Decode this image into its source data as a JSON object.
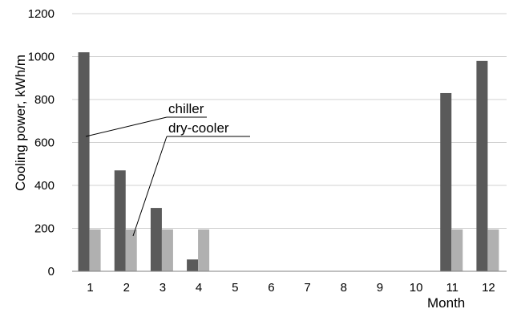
{
  "chart_data": {
    "type": "bar",
    "categories": [
      "1",
      "2",
      "3",
      "4",
      "5",
      "6",
      "7",
      "8",
      "9",
      "10",
      "11",
      "12"
    ],
    "series": [
      {
        "name": "chiller",
        "values": [
          1020,
          470,
          295,
          55,
          0,
          0,
          0,
          0,
          0,
          0,
          830,
          980
        ],
        "color": "#5a5a5a"
      },
      {
        "name": "dry-cooler",
        "values": [
          195,
          195,
          195,
          195,
          0,
          0,
          0,
          0,
          0,
          0,
          195,
          195
        ],
        "color": "#b0b0b0"
      }
    ],
    "yticks": [
      "0",
      "200",
      "400",
      "600",
      "800",
      "1000",
      "1200"
    ],
    "ylim": [
      0,
      1200
    ],
    "ylabel": "Cooling power, kWh/m",
    "xlabel": "Month",
    "grid": true,
    "legend": "annotations with leader lines"
  }
}
